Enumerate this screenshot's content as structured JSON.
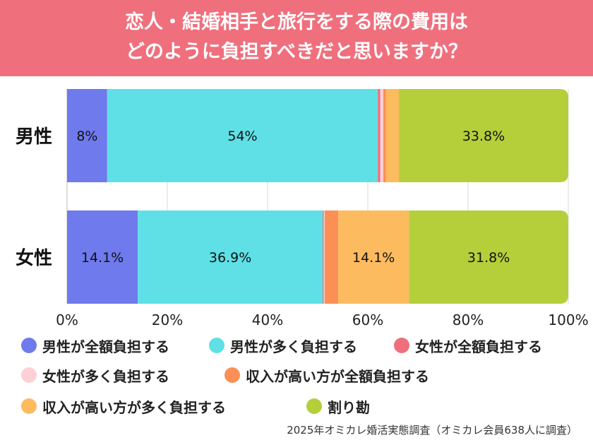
{
  "title": {
    "line1": "恋人・結婚相手と旅行をする際の費用は",
    "line2": "どのように負担すべきだと思いますか？"
  },
  "source": "2025年オミカレ婚活実態調査（オミカレ会員638人に調査）",
  "chart_data": {
    "type": "bar",
    "orientation": "horizontal",
    "stacked": true,
    "categories": [
      "男性",
      "女性"
    ],
    "xlim": [
      0,
      100
    ],
    "x_ticks": [
      "0%",
      "20%",
      "40%",
      "60%",
      "80%",
      "100%"
    ],
    "grid": true,
    "legend_position": "bottom",
    "series": [
      {
        "name": "男性が全額負担する",
        "values": [
          8,
          14.1
        ],
        "labels": [
          "8%",
          "14.1%"
        ],
        "color": "#6f7aec"
      },
      {
        "name": "男性が多く負担する",
        "values": [
          54,
          36.9
        ],
        "labels": [
          "54%",
          "36.9%"
        ],
        "color": "#5ee0e6"
      },
      {
        "name": "女性が全額負担する",
        "values": [
          0.5,
          0.2
        ],
        "labels": [
          "",
          ""
        ],
        "color": "#f06f7d"
      },
      {
        "name": "女性が多く負担する",
        "values": [
          0.6,
          0.2
        ],
        "labels": [
          "",
          ""
        ],
        "color": "#fdd0d6"
      },
      {
        "name": "収入が高い方が全額負担する",
        "values": [
          0.5,
          2.7
        ],
        "labels": [
          "",
          ""
        ],
        "color": "#fb8f55"
      },
      {
        "name": "収入が高い方が多く負担する",
        "values": [
          2.6,
          14.1
        ],
        "labels": [
          "",
          "14.1%"
        ],
        "color": "#fdbb5f"
      },
      {
        "name": "割り勘",
        "values": [
          33.8,
          31.8
        ],
        "labels": [
          "33.8%",
          "31.8%"
        ],
        "color": "#b4cf3a"
      }
    ]
  }
}
